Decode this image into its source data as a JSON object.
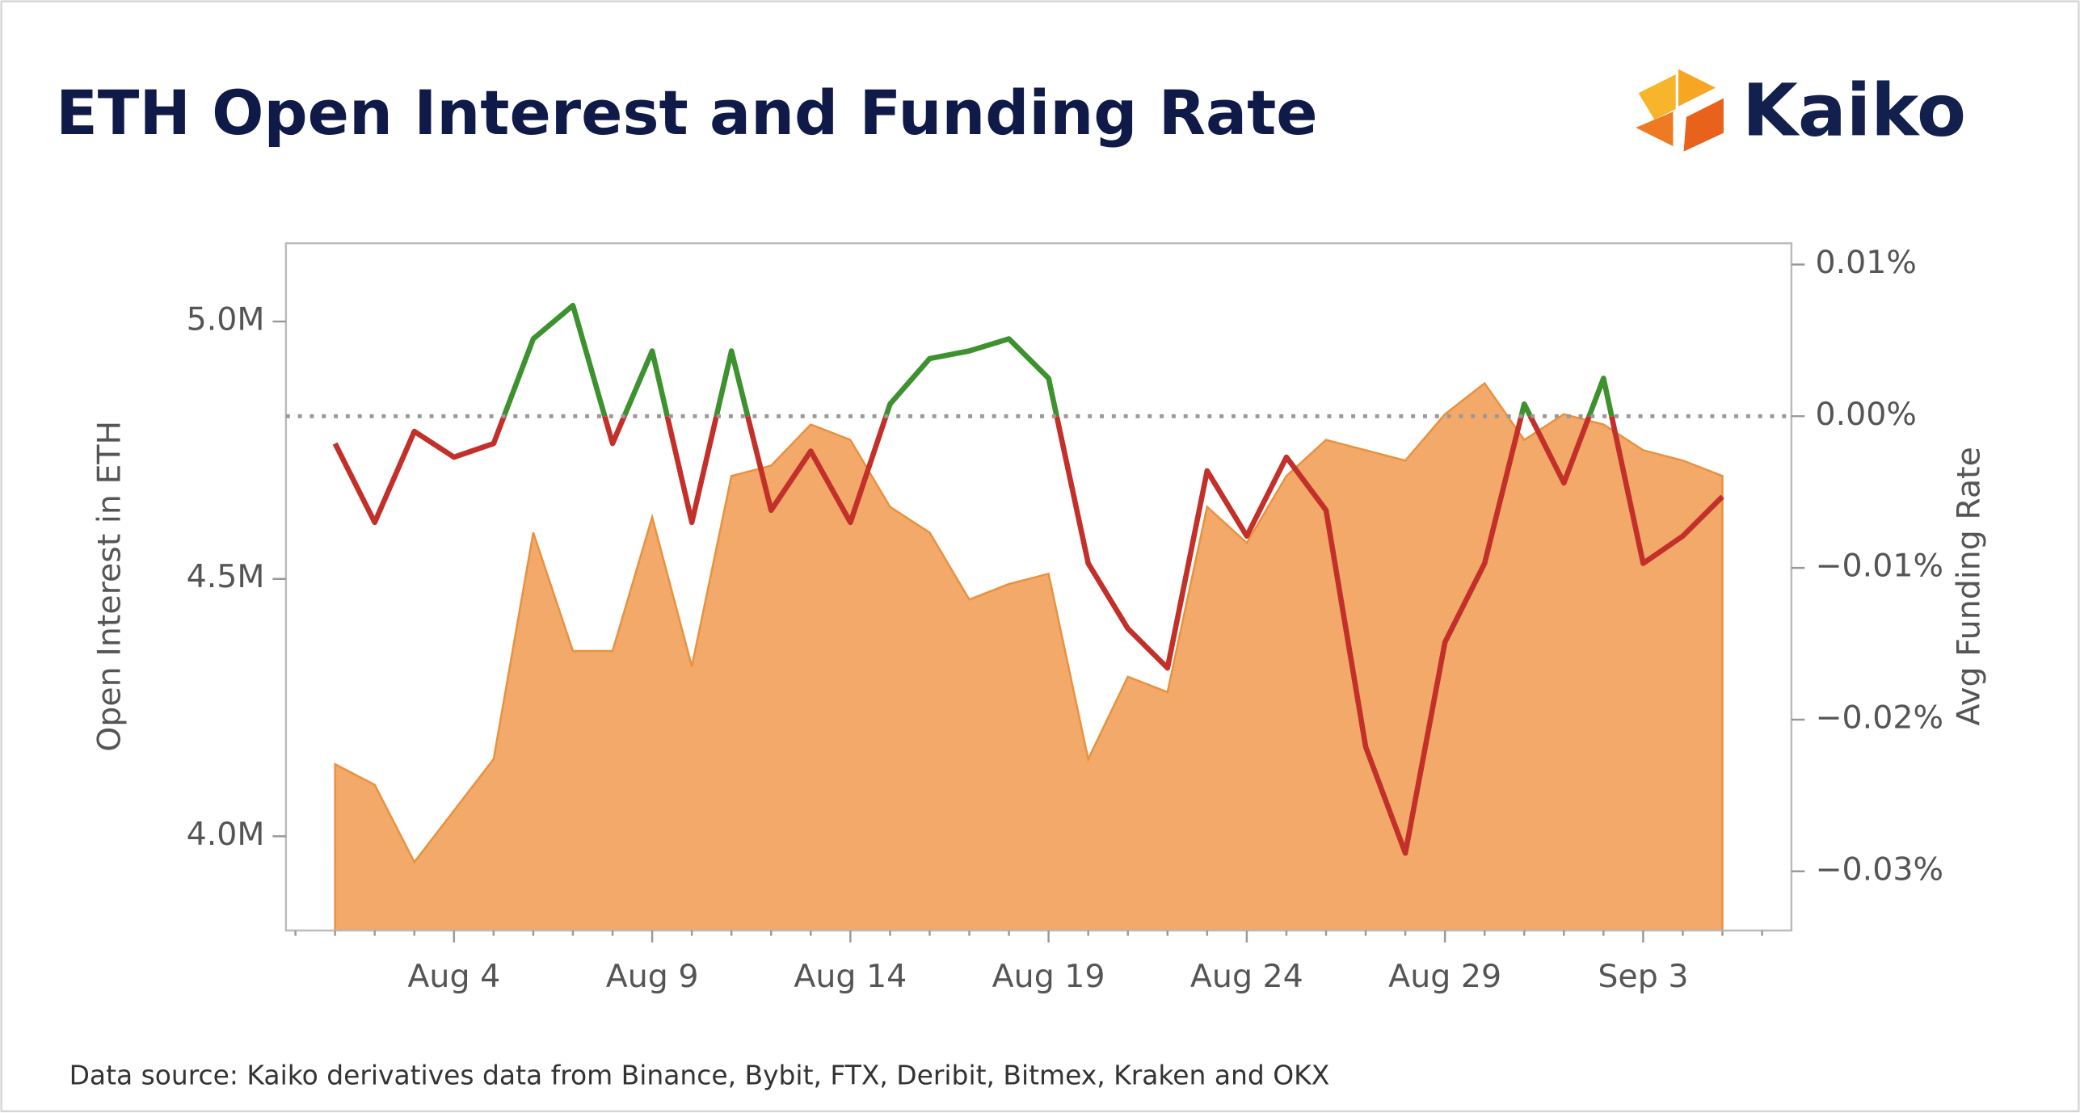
{
  "chart_data": {
    "type": "area_line",
    "title": "ETH Open Interest and Funding Rate",
    "brand": "Kaiko",
    "source": "Data source: Kaiko derivatives data from Binance, Bybit, FTX, Deribit, Bitmex, Kraken and OKX",
    "y_label": "Open Interest in ETH",
    "y2_label": "Avg Funding Rate",
    "categories": [
      "Aug 1",
      "Aug 2",
      "Aug 3",
      "Aug 4",
      "Aug 5",
      "Aug 6",
      "Aug 7",
      "Aug 8",
      "Aug 9",
      "Aug 10",
      "Aug 11",
      "Aug 12",
      "Aug 13",
      "Aug 14",
      "Aug 15",
      "Aug 16",
      "Aug 17",
      "Aug 18",
      "Aug 19",
      "Aug 20",
      "Aug 21",
      "Aug 22",
      "Aug 23",
      "Aug 24",
      "Aug 25",
      "Aug 26",
      "Aug 27",
      "Aug 28",
      "Aug 29",
      "Aug 30",
      "Aug 31",
      "Sep 1",
      "Sep 2",
      "Sep 3",
      "Sep 4",
      "Sep 5"
    ],
    "series": [
      {
        "name": "Open Interest",
        "type": "area",
        "color": "#f2a96a",
        "line_color": "#e8913f",
        "values": [
          4140000,
          4100000,
          3950000,
          4050000,
          4150000,
          4590000,
          4360000,
          4360000,
          4620000,
          4330000,
          4700000,
          4720000,
          4800000,
          4770000,
          4640000,
          4590000,
          4460000,
          4490000,
          4510000,
          4150000,
          4310000,
          4280000,
          4640000,
          4570000,
          4700000,
          4770000,
          4750000,
          4730000,
          4820000,
          4880000,
          4770000,
          4820000,
          4800000,
          4750000,
          4730000,
          4700000
        ]
      },
      {
        "name": "Funding Rate",
        "type": "line",
        "axis": "y2",
        "color": "#c3302a",
        "color_above_zero": "#3d912f",
        "values": [
          -0.0018,
          -0.007,
          -0.001,
          -0.0027,
          -0.0018,
          0.0051,
          0.0073,
          -0.0018,
          0.0043,
          -0.007,
          0.0043,
          -0.0062,
          -0.0023,
          -0.007,
          0.0008,
          0.0038,
          0.0043,
          0.0051,
          0.0025,
          -0.0097,
          -0.014,
          -0.0166,
          -0.0036,
          -0.0079,
          -0.0027,
          -0.0062,
          -0.0218,
          -0.0288,
          -0.0149,
          -0.0097,
          0.0008,
          -0.0044,
          0.0025,
          -0.0097,
          -0.0079,
          -0.0053
        ]
      }
    ],
    "ylim": [
      3817000,
      5152000
    ],
    "yticks": [
      {
        "value": 4000000,
        "label": "4.0M"
      },
      {
        "value": 4500000,
        "label": "4.5M"
      },
      {
        "value": 5000000,
        "label": "5.0M"
      }
    ],
    "y2lim": [
      -0.0339,
      0.0114
    ],
    "y2ticks": [
      {
        "value": -0.03,
        "label": "−0.03%"
      },
      {
        "value": -0.02,
        "label": "−0.02%"
      },
      {
        "value": -0.01,
        "label": "−0.01%"
      },
      {
        "value": 0,
        "label": "0.00%"
      },
      {
        "value": 0.01,
        "label": "0.01%"
      }
    ],
    "zero_line": true
  }
}
